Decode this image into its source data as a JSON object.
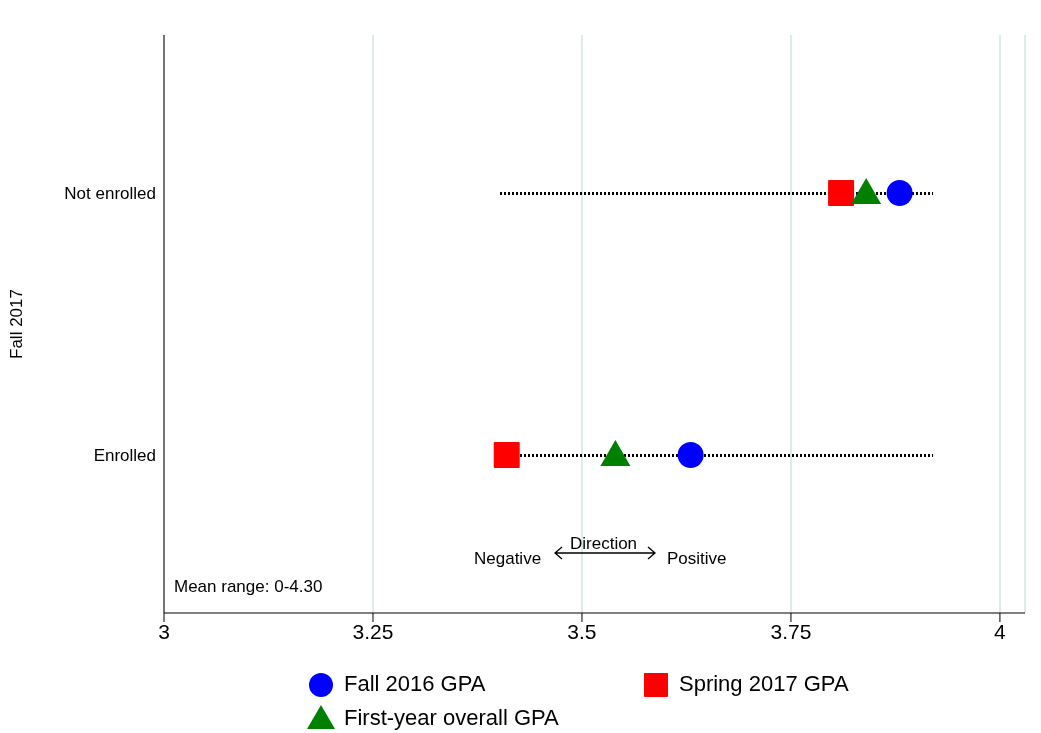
{
  "chart_data": {
    "type": "scatter",
    "orientation": "horizontal",
    "ylabel": "Fall 2017",
    "categories": [
      "Not enrolled",
      "Enrolled"
    ],
    "xlim": [
      3,
      4.03
    ],
    "xticks": [
      3,
      3.25,
      3.5,
      3.75,
      4
    ],
    "grid": "x",
    "legend": "bottom",
    "annotations": [
      "Direction",
      "Negative",
      "Positive",
      "Mean range: 0-4.30"
    ],
    "series": [
      {
        "type": "bar",
        "line_style": "dotted",
        "color": "#000000",
        "base": [
          3.4,
          3.4
        ],
        "values": [
          0.52,
          0.52
        ]
      },
      {
        "name": "Fall 2016 GPA",
        "marker": "circle",
        "color": "#0000ff",
        "values": [
          3.88,
          3.63
        ]
      },
      {
        "name": "Spring 2017 GPA",
        "marker": "square",
        "color": "#ff0000",
        "values": [
          3.81,
          3.41
        ]
      },
      {
        "name": "First-year overall GPA",
        "marker": "triangle",
        "color": "#008000",
        "values": [
          3.84,
          3.54
        ]
      }
    ]
  }
}
